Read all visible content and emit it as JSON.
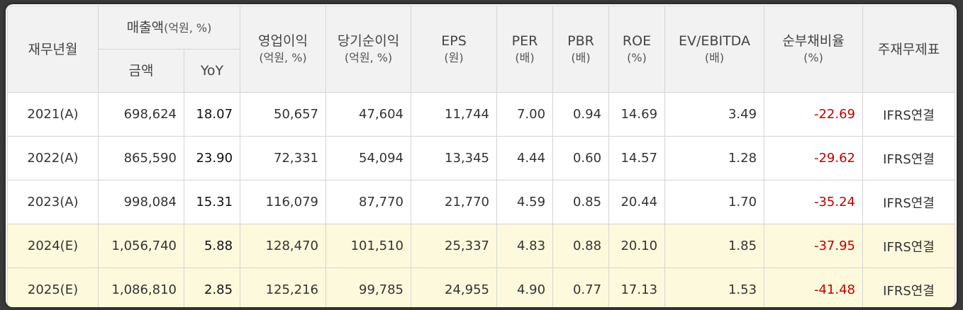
{
  "headers": {
    "period": "재무년월",
    "sales_group": "매출액",
    "sales_group_unit": "(억원, %)",
    "sales_amount": "금액",
    "sales_yoy": "YoY",
    "op_income": "영업이익",
    "op_income_unit": "(억원, %)",
    "net_income": "당기순이익",
    "net_income_unit": "(억원, %)",
    "eps": "EPS",
    "eps_unit": "(원)",
    "per": "PER",
    "per_unit": "(배)",
    "pbr": "PBR",
    "pbr_unit": "(배)",
    "roe": "ROE",
    "roe_unit": "(%)",
    "ev_ebitda": "EV/EBITDA",
    "ev_ebitda_unit": "(배)",
    "net_debt_ratio": "순부채비율",
    "net_debt_ratio_unit": "(%)",
    "main_fs": "주재무제표"
  },
  "rows": [
    {
      "period": "2021(A)",
      "sales": "698,624",
      "yoy": "18.07",
      "op": "50,657",
      "net": "47,604",
      "eps": "11,744",
      "per": "7.00",
      "pbr": "0.94",
      "roe": "14.69",
      "ev": "3.49",
      "ndr": "-22.69",
      "fs": "IFRS연결"
    },
    {
      "period": "2022(A)",
      "sales": "865,590",
      "yoy": "23.90",
      "op": "72,331",
      "net": "54,094",
      "eps": "13,345",
      "per": "4.44",
      "pbr": "0.60",
      "roe": "14.57",
      "ev": "1.28",
      "ndr": "-29.62",
      "fs": "IFRS연결"
    },
    {
      "period": "2023(A)",
      "sales": "998,084",
      "yoy": "15.31",
      "op": "116,079",
      "net": "87,770",
      "eps": "21,770",
      "per": "4.59",
      "pbr": "0.85",
      "roe": "20.44",
      "ev": "1.70",
      "ndr": "-35.24",
      "fs": "IFRS연결"
    },
    {
      "period": "2024(E)",
      "sales": "1,056,740",
      "yoy": "5.88",
      "op": "128,470",
      "net": "101,510",
      "eps": "25,337",
      "per": "4.83",
      "pbr": "0.88",
      "roe": "20.10",
      "ev": "1.85",
      "ndr": "-37.95",
      "fs": "IFRS연결"
    },
    {
      "period": "2025(E)",
      "sales": "1,086,810",
      "yoy": "2.85",
      "op": "125,216",
      "net": "99,785",
      "eps": "24,955",
      "per": "4.90",
      "pbr": "0.77",
      "roe": "17.13",
      "ev": "1.53",
      "ndr": "-41.48",
      "fs": "IFRS연결"
    }
  ],
  "colors": {
    "header_bg": "#f2f2f2",
    "estimate_row_bg": "#fdf9dc",
    "negative": "#c00000"
  }
}
